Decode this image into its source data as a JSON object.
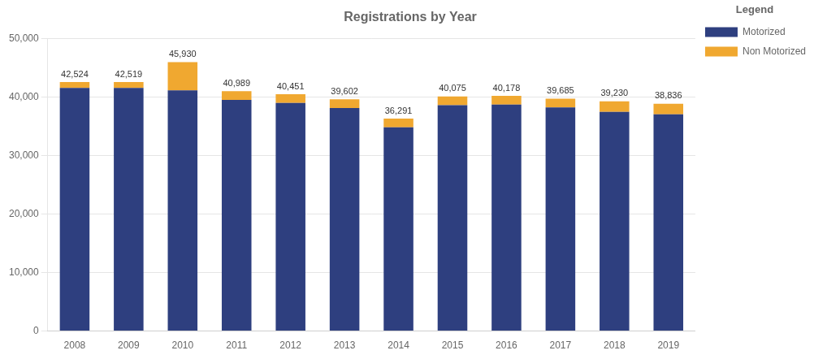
{
  "chart_data": {
    "type": "bar",
    "title": "Registrations by Year",
    "categories": [
      "2008",
      "2009",
      "2010",
      "2011",
      "2012",
      "2013",
      "2014",
      "2015",
      "2016",
      "2017",
      "2018",
      "2019"
    ],
    "series": [
      {
        "name": "Motorized",
        "color": "#2e3f7f",
        "values": [
          41524,
          41519,
          41100,
          39489,
          38951,
          38102,
          34791,
          38575,
          38678,
          38185,
          37430,
          37036
        ]
      },
      {
        "name": "Non Motorized",
        "color": "#f0a830",
        "values": [
          1000,
          1000,
          4830,
          1500,
          1500,
          1500,
          1500,
          1500,
          1500,
          1500,
          1800,
          1800
        ]
      }
    ],
    "stacked": true,
    "totals": [
      42524,
      42519,
      45930,
      40989,
      40451,
      39602,
      36291,
      40075,
      40178,
      39685,
      39230,
      38836
    ],
    "total_labels": [
      "42,524",
      "42,519",
      "45,930",
      "40,989",
      "40,451",
      "39,602",
      "36,291",
      "40,075",
      "40,178",
      "39,685",
      "39,230",
      "38,836"
    ],
    "ylim": [
      0,
      50000
    ],
    "yticks": [
      0,
      {
        "value": 10000,
        "label": "10,000"
      },
      {
        "value": 20000,
        "label": "20,000"
      },
      {
        "value": 30000,
        "label": "30,000"
      },
      {
        "value": 40000,
        "label": "40,000"
      },
      {
        "value": 50000,
        "label": "50,000"
      }
    ],
    "grid": true,
    "legend": "right",
    "legend_title": "Legend"
  }
}
